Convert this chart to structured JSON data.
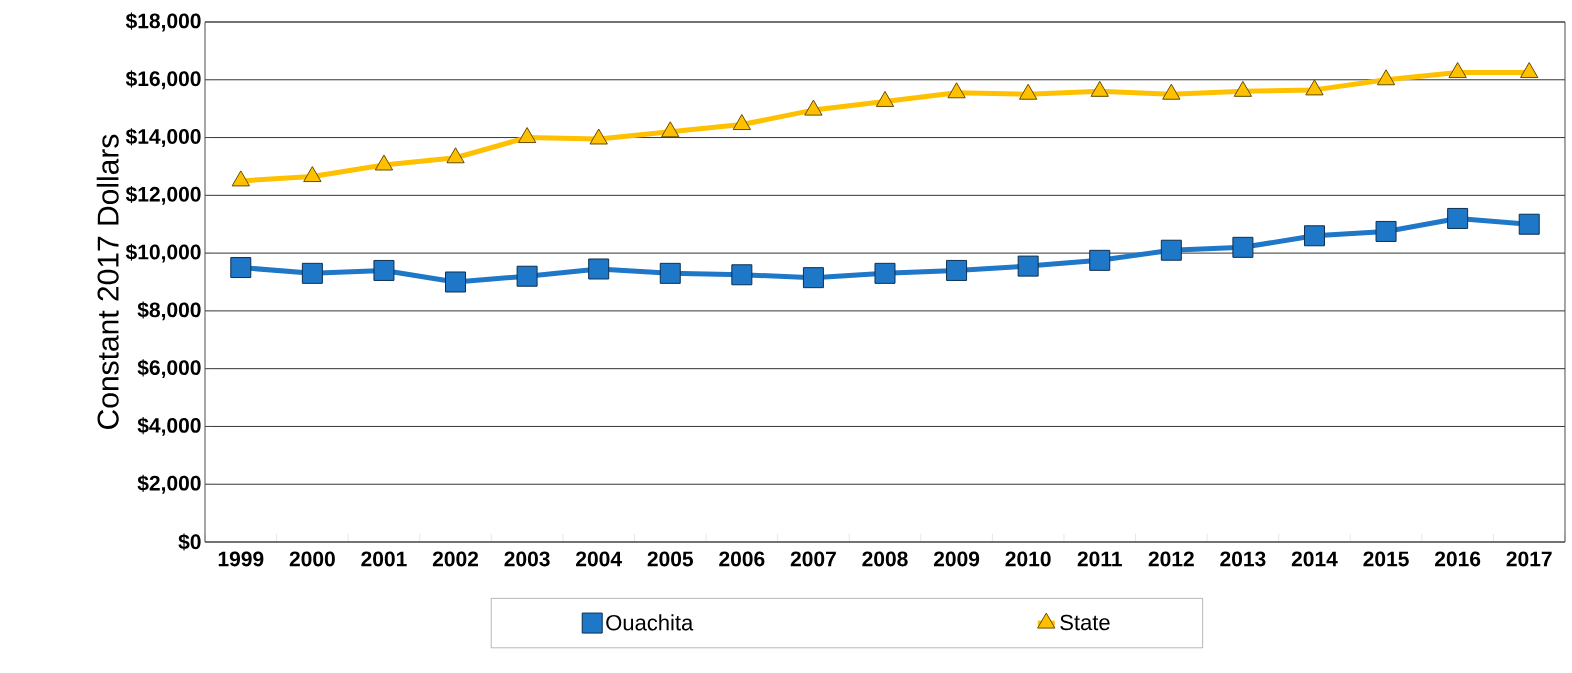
{
  "chart_data": {
    "type": "line",
    "ylabel": "Constant 2017 Dollars",
    "categories": [
      "1999",
      "2000",
      "2001",
      "2002",
      "2003",
      "2004",
      "2005",
      "2006",
      "2007",
      "2008",
      "2009",
      "2010",
      "2011",
      "2012",
      "2013",
      "2014",
      "2015",
      "2016",
      "2017"
    ],
    "series": [
      {
        "name": "Ouachita",
        "color": "#1f77c8",
        "marker": "square",
        "values": [
          9500,
          9300,
          9400,
          9000,
          9200,
          9450,
          9300,
          9250,
          9150,
          9300,
          9400,
          9550,
          9750,
          10100,
          10200,
          10600,
          10750,
          11200,
          11000
        ]
      },
      {
        "name": "State",
        "color": "#ffc000",
        "marker": "triangle",
        "values": [
          12500,
          12650,
          13050,
          13300,
          14000,
          13950,
          14200,
          14450,
          14950,
          15250,
          15550,
          15500,
          15600,
          15500,
          15600,
          15650,
          16000,
          16250,
          16250
        ]
      }
    ],
    "ylim": [
      0,
      18000
    ],
    "yticks": [
      {
        "value": 0,
        "label": "$0"
      },
      {
        "value": 2000,
        "label": "$2,000"
      },
      {
        "value": 4000,
        "label": "$4,000"
      },
      {
        "value": 6000,
        "label": "$6,000"
      },
      {
        "value": 8000,
        "label": "$8,000"
      },
      {
        "value": 10000,
        "label": "$10,000"
      },
      {
        "value": 12000,
        "label": "$12,000"
      },
      {
        "value": 14000,
        "label": "$14,000"
      },
      {
        "value": 16000,
        "label": "$16,000"
      },
      {
        "value": 18000,
        "label": "$18,000"
      }
    ],
    "grid": "y",
    "legend": "bottom",
    "line_style": "solid"
  }
}
